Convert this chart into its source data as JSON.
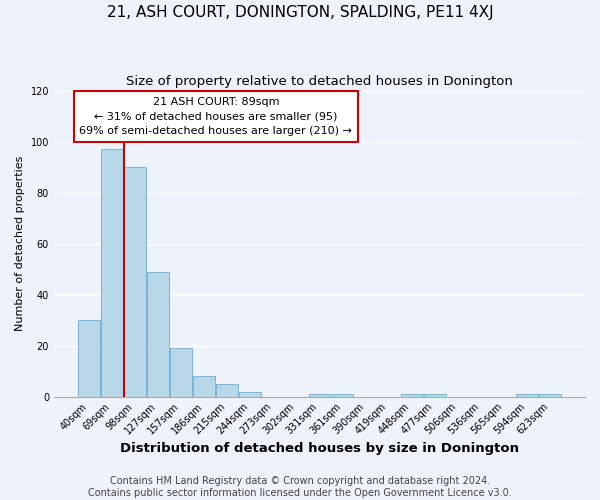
{
  "title": "21, ASH COURT, DONINGTON, SPALDING, PE11 4XJ",
  "subtitle": "Size of property relative to detached houses in Donington",
  "xlabel": "Distribution of detached houses by size in Donington",
  "ylabel": "Number of detached properties",
  "categories": [
    "40sqm",
    "69sqm",
    "98sqm",
    "127sqm",
    "157sqm",
    "186sqm",
    "215sqm",
    "244sqm",
    "273sqm",
    "302sqm",
    "331sqm",
    "361sqm",
    "390sqm",
    "419sqm",
    "448sqm",
    "477sqm",
    "506sqm",
    "536sqm",
    "565sqm",
    "594sqm",
    "623sqm"
  ],
  "values": [
    30,
    97,
    90,
    49,
    19,
    8,
    5,
    2,
    0,
    0,
    1,
    1,
    0,
    0,
    1,
    1,
    0,
    0,
    0,
    1,
    1
  ],
  "bar_color": "#b8d8e8",
  "bar_edge_color": "#6baed6",
  "vline_color": "#cc0000",
  "ylim": [
    0,
    120
  ],
  "yticks": [
    0,
    20,
    40,
    60,
    80,
    100,
    120
  ],
  "annotation_title": "21 ASH COURT: 89sqm",
  "annotation_line1": "← 31% of detached houses are smaller (95)",
  "annotation_line2": "69% of semi-detached houses are larger (210) →",
  "annotation_box_edge": "#cc0000",
  "footer1": "Contains HM Land Registry data © Crown copyright and database right 2024.",
  "footer2": "Contains public sector information licensed under the Open Government Licence v3.0.",
  "background_color": "#eef2fa",
  "plot_background": "#eef2fa",
  "grid_color": "#ffffff",
  "title_fontsize": 11,
  "subtitle_fontsize": 9.5,
  "xlabel_fontsize": 9.5,
  "ylabel_fontsize": 8,
  "tick_fontsize": 7,
  "footer_fontsize": 7,
  "ann_fontsize": 8
}
